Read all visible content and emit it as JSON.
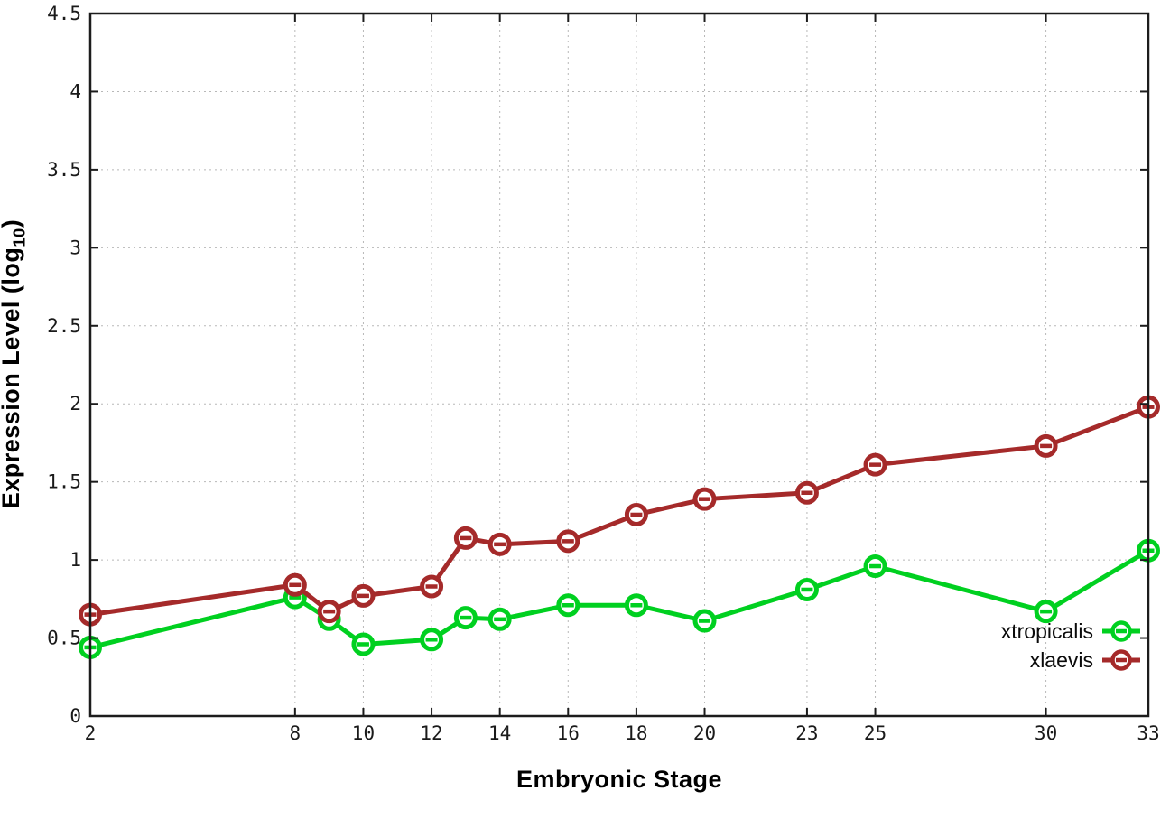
{
  "chart_data": {
    "type": "line",
    "title": "",
    "xlabel": "Embryonic Stage",
    "ylabel": "Expression Level (log10)",
    "x": [
      2,
      8,
      9,
      10,
      12,
      13,
      14,
      16,
      18,
      20,
      23,
      25,
      30,
      33
    ],
    "series": [
      {
        "name": "xtropicalis",
        "color": "#00d020",
        "values": [
          0.44,
          0.76,
          0.62,
          0.46,
          0.49,
          0.63,
          0.62,
          0.71,
          0.71,
          0.61,
          0.81,
          0.96,
          0.67,
          1.06
        ]
      },
      {
        "name": "xlaevis",
        "color": "#a52a2a",
        "values": [
          0.65,
          0.84,
          0.67,
          0.77,
          0.83,
          1.14,
          1.1,
          1.12,
          1.29,
          1.39,
          1.43,
          1.61,
          1.73,
          1.98
        ]
      }
    ],
    "xlim": [
      2,
      33
    ],
    "ylim": [
      0,
      4.5
    ],
    "x_ticks": [
      2,
      8,
      10,
      12,
      14,
      16,
      18,
      20,
      23,
      25,
      30,
      33
    ],
    "y_ticks": [
      0,
      0.5,
      1,
      1.5,
      2,
      2.5,
      3,
      3.5,
      4,
      4.5
    ],
    "grid": true,
    "grid_style": "dotted",
    "marker": "open-circle-dash",
    "legend_position": "inside-bottom-right"
  },
  "axes": {
    "x_label": "Embryonic Stage",
    "y_label_prefix": "Expression Level (log",
    "y_label_sub": "10",
    "y_label_suffix": ")"
  },
  "colors": {
    "background": "#ffffff",
    "border": "#1c1c1c",
    "grid": "#b8b8b8",
    "tick_text": "#1a1a1a",
    "series_xtropicalis": "#00d020",
    "series_xlaevis": "#a52a2a"
  }
}
